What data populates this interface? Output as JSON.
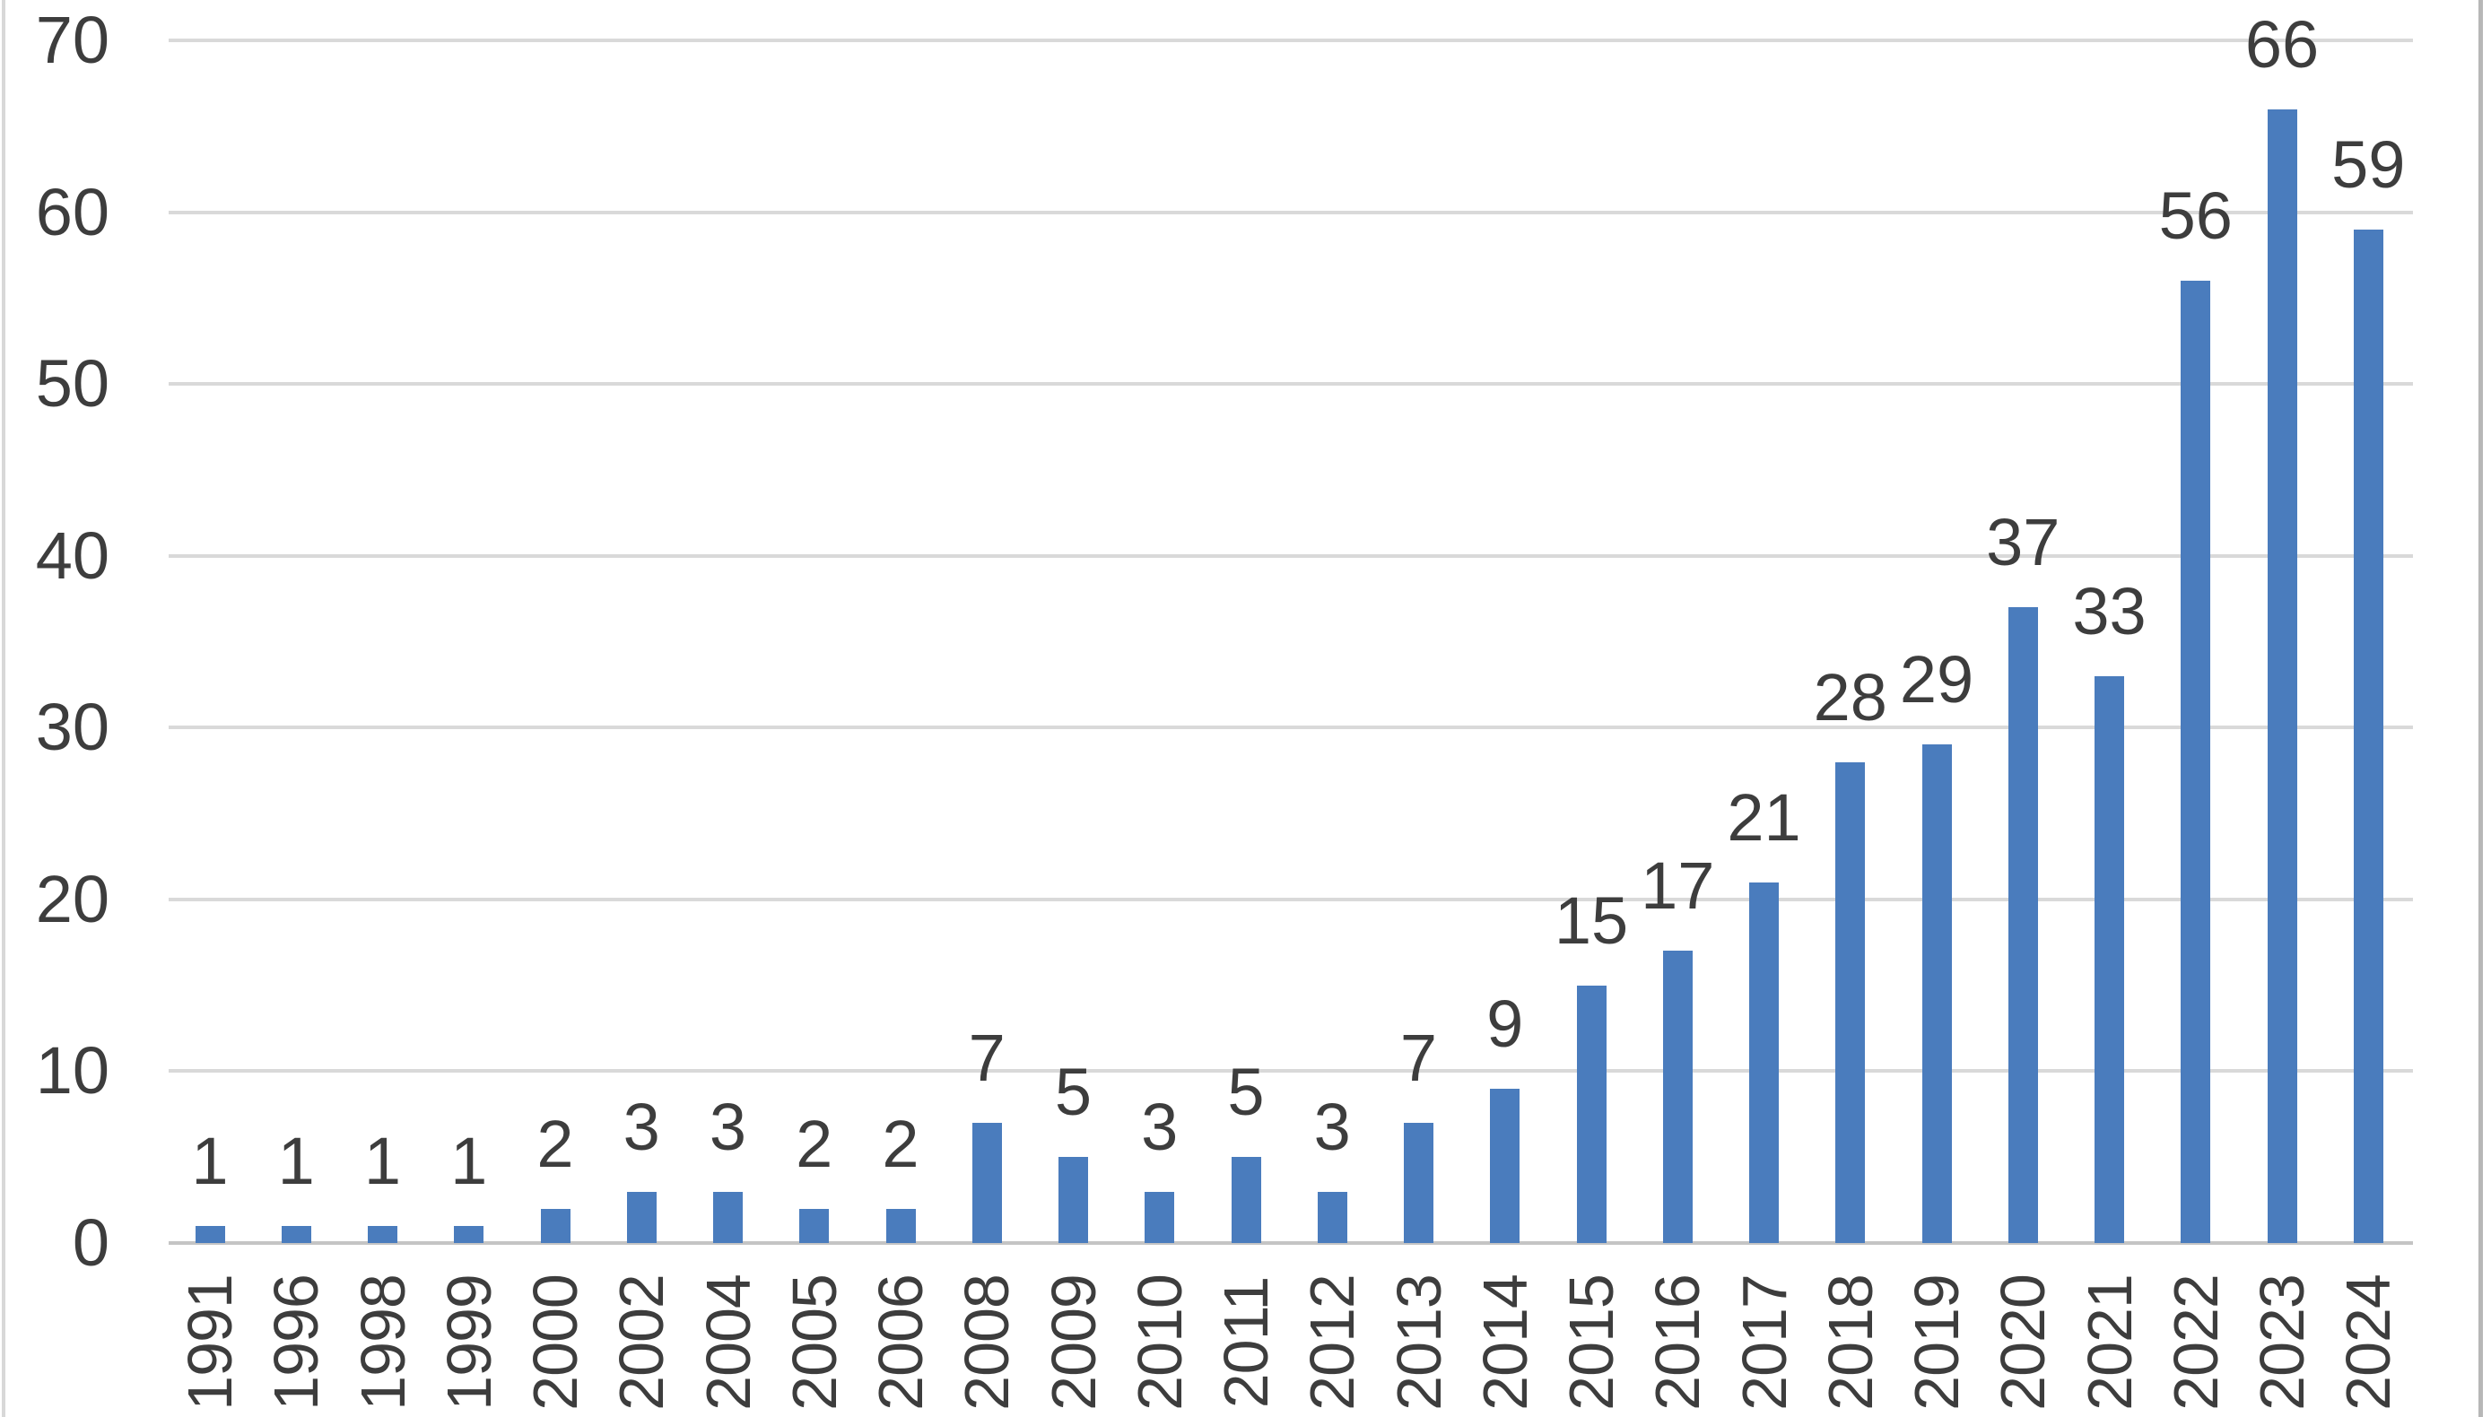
{
  "chart_data": {
    "type": "bar",
    "title": "",
    "xlabel": "",
    "ylabel": "",
    "categories": [
      "1991",
      "1996",
      "1998",
      "1999",
      "2000",
      "2002",
      "2004",
      "2005",
      "2006",
      "2008",
      "2009",
      "2010",
      "2011",
      "2012",
      "2013",
      "2014",
      "2015",
      "2016",
      "2017",
      "2018",
      "2019",
      "2020",
      "2021",
      "2022",
      "2023",
      "2024"
    ],
    "values": [
      1,
      1,
      1,
      1,
      2,
      3,
      3,
      2,
      2,
      7,
      5,
      3,
      5,
      3,
      7,
      9,
      15,
      17,
      21,
      28,
      29,
      37,
      33,
      56,
      66,
      59
    ],
    "data_labels_shown": true,
    "ylim": [
      0,
      70
    ],
    "yticks": [
      0,
      10,
      20,
      30,
      40,
      50,
      60,
      70
    ],
    "grid": "horizontal",
    "legend": "none",
    "colors": {
      "bar": "#4A7CBD",
      "gridline": "#D9D9D9",
      "axis_line": "#C4C4C4",
      "tick_text": "#3D3D3D",
      "data_label_text": "#3D3D3D",
      "background": "#FFFFFF",
      "frame_border_left": "#D8D8D8",
      "frame_border_right": "#B7B7B7"
    }
  }
}
